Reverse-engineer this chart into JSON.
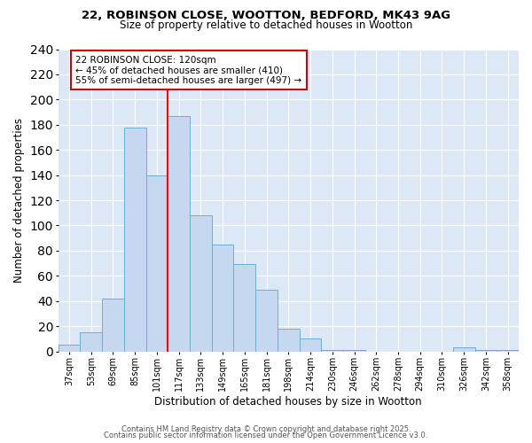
{
  "title_line1": "22, ROBINSON CLOSE, WOOTTON, BEDFORD, MK43 9AG",
  "title_line2": "Size of property relative to detached houses in Wootton",
  "xlabel": "Distribution of detached houses by size in Wootton",
  "ylabel": "Number of detached properties",
  "bin_labels": [
    "37sqm",
    "53sqm",
    "69sqm",
    "85sqm",
    "101sqm",
    "117sqm",
    "133sqm",
    "149sqm",
    "165sqm",
    "181sqm",
    "198sqm",
    "214sqm",
    "230sqm",
    "246sqm",
    "262sqm",
    "278sqm",
    "294sqm",
    "310sqm",
    "326sqm",
    "342sqm",
    "358sqm"
  ],
  "bar_heights": [
    5,
    15,
    42,
    178,
    140,
    187,
    108,
    85,
    69,
    49,
    18,
    10,
    1,
    1,
    0,
    0,
    0,
    0,
    3,
    1,
    1
  ],
  "bar_color": "#c5d8f0",
  "bar_edge_color": "#6aaed6",
  "red_line_x": 4.5,
  "annotation_line1": "22 ROBINSON CLOSE: 120sqm",
  "annotation_line2": "← 45% of detached houses are smaller (410)",
  "annotation_line3": "55% of semi-detached houses are larger (497) →",
  "annotation_box_color": "#ffffff",
  "annotation_box_edge": "#cc0000",
  "ylim": [
    0,
    240
  ],
  "yticks": [
    0,
    20,
    40,
    60,
    80,
    100,
    120,
    140,
    160,
    180,
    200,
    220,
    240
  ],
  "footer_line1": "Contains HM Land Registry data © Crown copyright and database right 2025.",
  "footer_line2": "Contains public sector information licensed under the Open Government Licence v3.0.",
  "fig_bg_color": "#ffffff",
  "plot_bg_color": "#dce8f5"
}
